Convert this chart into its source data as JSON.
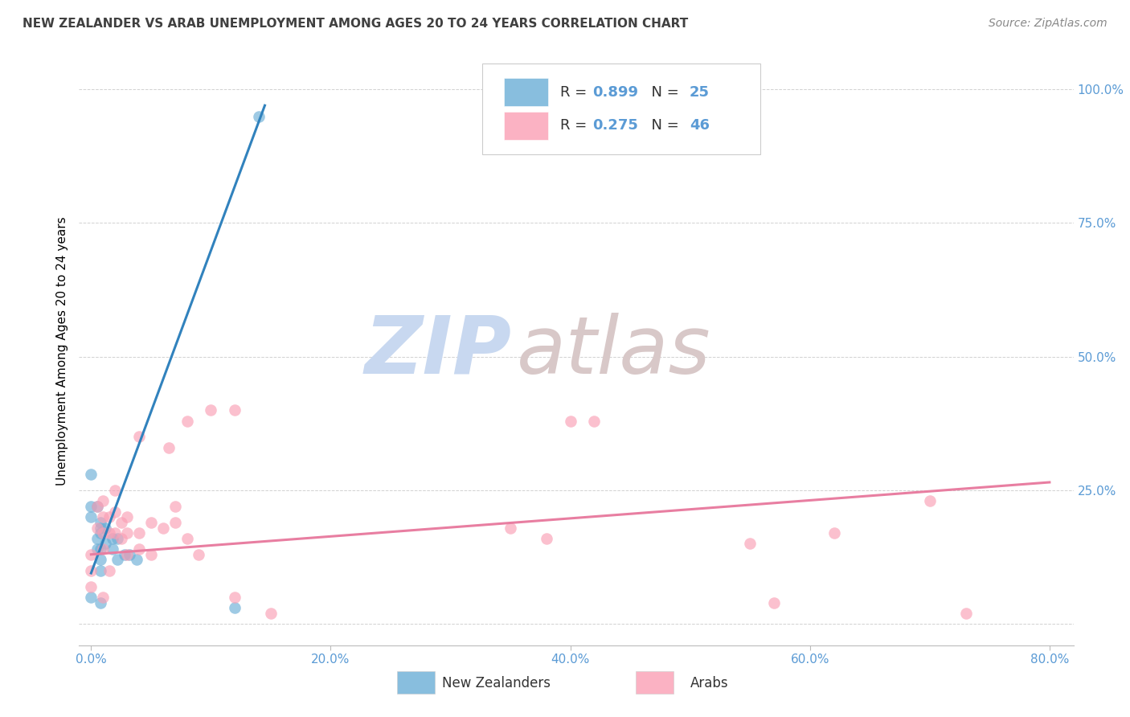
{
  "title": "NEW ZEALANDER VS ARAB UNEMPLOYMENT AMONG AGES 20 TO 24 YEARS CORRELATION CHART",
  "source": "Source: ZipAtlas.com",
  "ylabel": "Unemployment Among Ages 20 to 24 years",
  "yticks": [
    0.0,
    0.25,
    0.5,
    0.75,
    1.0
  ],
  "ytick_labels": [
    "",
    "25.0%",
    "50.0%",
    "75.0%",
    "100.0%"
  ],
  "xticks": [
    0.0,
    0.2,
    0.4,
    0.6,
    0.8
  ],
  "xtick_labels": [
    "0.0%",
    "20.0%",
    "40.0%",
    "60.0%",
    "80.0%"
  ],
  "xlim": [
    -0.01,
    0.82
  ],
  "ylim": [
    -0.04,
    1.06
  ],
  "nz_R": 0.899,
  "nz_N": 25,
  "arab_R": 0.275,
  "arab_N": 46,
  "nz_color": "#6baed6",
  "arab_color": "#fa9fb5",
  "nz_line_color": "#3182bd",
  "arab_line_color": "#e87ea1",
  "watermark_zip_color": "#c8d8f0",
  "watermark_atlas_color": "#d8c8c8",
  "legend_label_nz": "New Zealanders",
  "legend_label_arab": "Arabs",
  "nz_scatter_x": [
    0.0,
    0.0,
    0.0,
    0.0,
    0.005,
    0.005,
    0.005,
    0.008,
    0.008,
    0.008,
    0.008,
    0.008,
    0.008,
    0.008,
    0.012,
    0.012,
    0.018,
    0.018,
    0.022,
    0.022,
    0.028,
    0.032,
    0.038,
    0.12,
    0.14
  ],
  "nz_scatter_y": [
    0.28,
    0.22,
    0.2,
    0.05,
    0.22,
    0.16,
    0.14,
    0.19,
    0.18,
    0.17,
    0.14,
    0.12,
    0.1,
    0.04,
    0.18,
    0.15,
    0.16,
    0.14,
    0.16,
    0.12,
    0.13,
    0.13,
    0.12,
    0.03,
    0.95
  ],
  "arab_scatter_x": [
    0.0,
    0.0,
    0.0,
    0.005,
    0.005,
    0.01,
    0.01,
    0.01,
    0.01,
    0.01,
    0.015,
    0.015,
    0.015,
    0.02,
    0.02,
    0.02,
    0.025,
    0.025,
    0.03,
    0.03,
    0.03,
    0.04,
    0.04,
    0.04,
    0.05,
    0.05,
    0.06,
    0.065,
    0.07,
    0.07,
    0.08,
    0.08,
    0.09,
    0.1,
    0.12,
    0.12,
    0.15,
    0.35,
    0.38,
    0.4,
    0.42,
    0.55,
    0.57,
    0.62,
    0.7,
    0.73
  ],
  "arab_scatter_y": [
    0.13,
    0.1,
    0.07,
    0.22,
    0.18,
    0.23,
    0.2,
    0.17,
    0.14,
    0.05,
    0.2,
    0.17,
    0.1,
    0.25,
    0.21,
    0.17,
    0.19,
    0.16,
    0.2,
    0.17,
    0.13,
    0.35,
    0.17,
    0.14,
    0.19,
    0.13,
    0.18,
    0.33,
    0.22,
    0.19,
    0.38,
    0.16,
    0.13,
    0.4,
    0.4,
    0.05,
    0.02,
    0.18,
    0.16,
    0.38,
    0.38,
    0.15,
    0.04,
    0.17,
    0.23,
    0.02
  ],
  "nz_line_x": [
    0.0,
    0.145
  ],
  "nz_line_y": [
    0.095,
    0.97
  ],
  "arab_line_x": [
    0.0,
    0.8
  ],
  "arab_line_y": [
    0.13,
    0.265
  ],
  "tick_color": "#5b9bd5",
  "grid_color": "#cccccc",
  "title_color": "#404040",
  "source_color": "#888888"
}
